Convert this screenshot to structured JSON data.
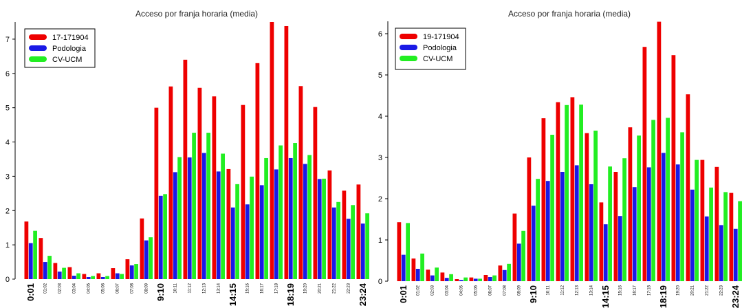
{
  "charts": {
    "colors": {
      "series1": "#ee0000",
      "series2": "#1a1ae6",
      "series3": "#22ee22"
    },
    "tick_labels": [
      "0:01",
      "01:02",
      "02:03",
      "03:04",
      "04:05",
      "05:06",
      "06:07",
      "07:08",
      "08:09",
      "9:10",
      "10:11",
      "11:12",
      "12:13",
      "13:14",
      "14:15",
      "15:16",
      "16:17",
      "17:18",
      "18:19",
      "19:20",
      "20:21",
      "21:22",
      "22:23",
      "23:24"
    ],
    "major_tick_indices": [
      0,
      9,
      14,
      18,
      23
    ]
  },
  "chart_data": [
    {
      "type": "bar",
      "title": "Acceso por franja horaria (media)",
      "xlabel": "",
      "ylabel": "",
      "ylim": [
        0,
        7.5
      ],
      "yticks": [
        "0",
        "1",
        "2",
        "3",
        "4",
        "5",
        "6",
        "7"
      ],
      "legend_position": "top-left",
      "categories": [
        "0:01",
        "01:02",
        "02:03",
        "03:04",
        "04:05",
        "05:06",
        "06:07",
        "07:08",
        "08:09",
        "9:10",
        "10:11",
        "11:12",
        "12:13",
        "13:14",
        "14:15",
        "15:16",
        "16:17",
        "17:18",
        "18:19",
        "19:20",
        "20:21",
        "21:22",
        "22:23",
        "23:24"
      ],
      "series": [
        {
          "name": "17-171904",
          "values": [
            1.68,
            1.2,
            0.47,
            0.35,
            0.15,
            0.17,
            0.32,
            0.58,
            1.77,
            5.0,
            5.62,
            6.4,
            5.58,
            5.33,
            3.21,
            5.08,
            6.3,
            7.5,
            7.38,
            5.63,
            5.02,
            3.17,
            2.58,
            2.76
          ]
        },
        {
          "name": "Podologia",
          "values": [
            1.05,
            0.5,
            0.22,
            0.1,
            0.06,
            0.06,
            0.17,
            0.4,
            1.13,
            2.43,
            3.12,
            3.55,
            3.68,
            3.14,
            2.09,
            2.18,
            2.74,
            3.2,
            3.53,
            3.36,
            2.92,
            2.09,
            1.76,
            1.62
          ]
        },
        {
          "name": "CV-UCM",
          "values": [
            1.41,
            0.68,
            0.33,
            0.17,
            0.09,
            0.09,
            0.15,
            0.44,
            1.22,
            2.48,
            3.56,
            4.27,
            4.27,
            3.66,
            2.77,
            2.99,
            3.53,
            3.9,
            3.97,
            3.62,
            2.93,
            2.25,
            2.16,
            1.92
          ]
        }
      ]
    },
    {
      "type": "bar",
      "title": "Acceso por franja horaria (media)",
      "xlabel": "",
      "ylabel": "",
      "ylim": [
        0,
        6.3
      ],
      "yticks": [
        "0",
        "1",
        "2",
        "3",
        "4",
        "5",
        "6"
      ],
      "legend_position": "top-left",
      "categories": [
        "0:01",
        "01:02",
        "02:03",
        "03:04",
        "04:05",
        "05:06",
        "06:07",
        "07:08",
        "08:09",
        "9:10",
        "10:11",
        "11:12",
        "12:13",
        "13:14",
        "14:15",
        "15:16",
        "16:17",
        "17:18",
        "18:19",
        "19:20",
        "20:21",
        "21:22",
        "22:23",
        "23:24"
      ],
      "series": [
        {
          "name": "19-171904",
          "values": [
            1.43,
            0.55,
            0.28,
            0.21,
            0.05,
            0.09,
            0.15,
            0.38,
            1.64,
            3.0,
            3.95,
            4.34,
            4.46,
            3.59,
            1.91,
            2.65,
            3.73,
            5.68,
            6.29,
            5.48,
            4.53,
            2.94,
            2.77,
            2.14
          ]
        },
        {
          "name": "Podologia",
          "values": [
            0.64,
            0.3,
            0.14,
            0.08,
            0.03,
            0.06,
            0.1,
            0.27,
            0.91,
            1.83,
            2.43,
            2.65,
            2.81,
            2.35,
            1.38,
            1.58,
            2.28,
            2.76,
            3.11,
            2.83,
            2.22,
            1.57,
            1.36,
            1.27
          ]
        },
        {
          "name": "CV-UCM",
          "values": [
            1.41,
            0.67,
            0.33,
            0.17,
            0.09,
            0.06,
            0.14,
            0.42,
            1.22,
            2.48,
            3.55,
            4.27,
            4.28,
            3.65,
            2.78,
            2.98,
            3.53,
            3.91,
            3.96,
            3.61,
            2.94,
            2.27,
            2.16,
            1.94
          ]
        }
      ]
    }
  ]
}
